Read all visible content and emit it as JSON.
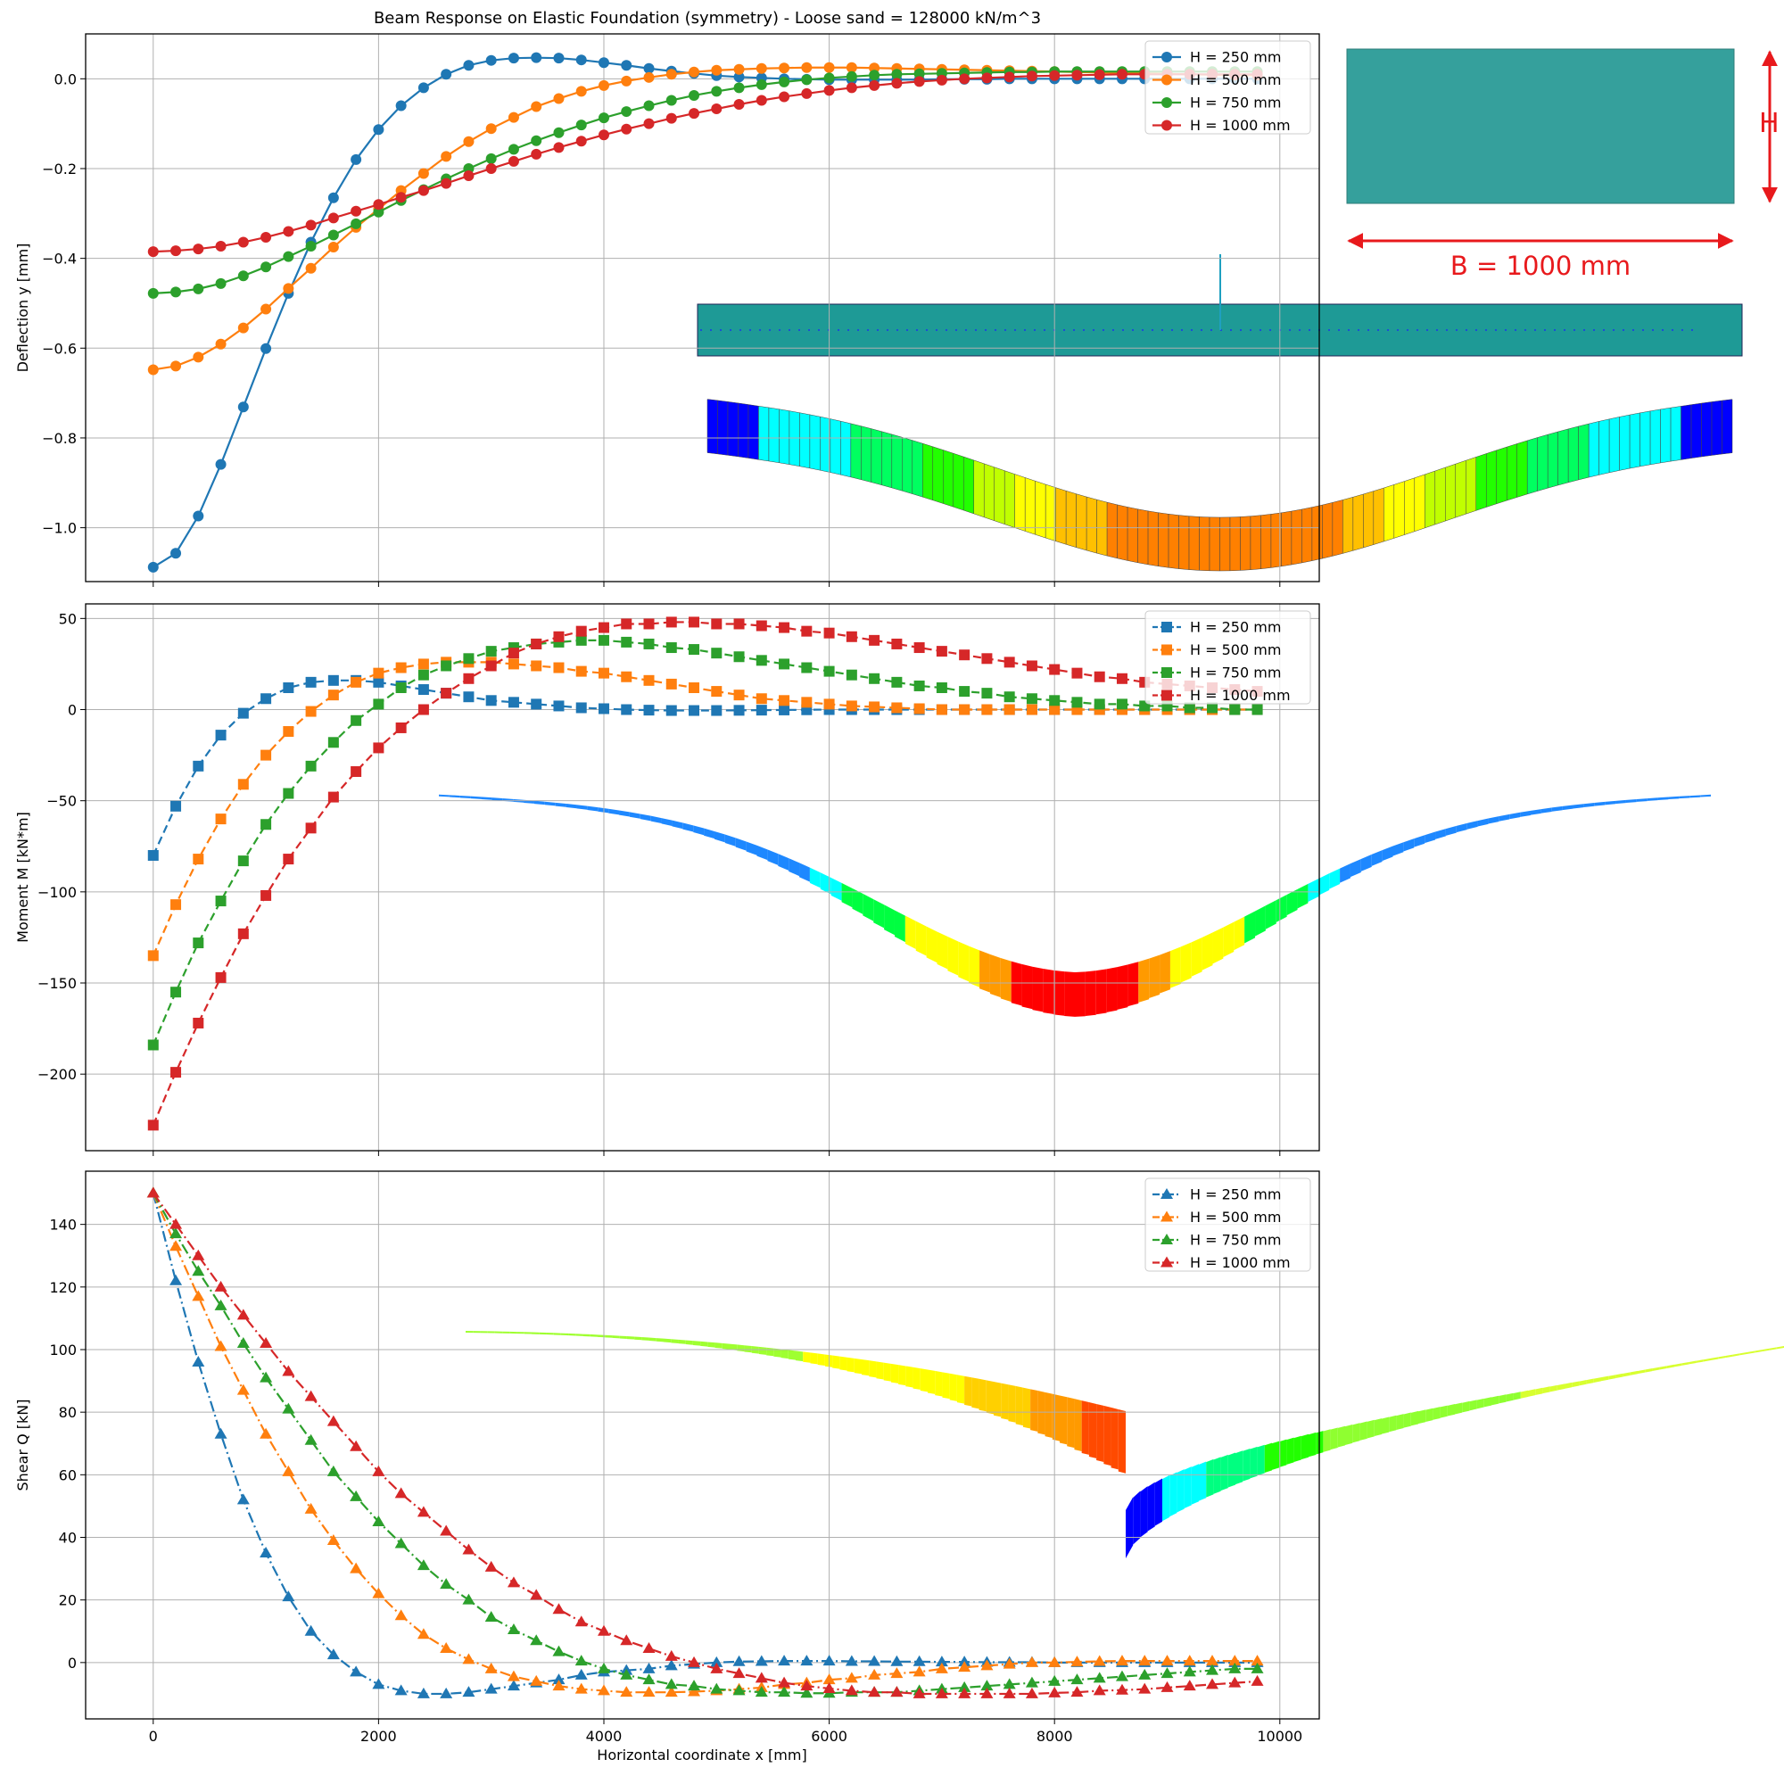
{
  "figure": {
    "title": "Beam Response on Elastic Foundation (symmetry) - Loose sand = 128000 kN/m^3",
    "xlabel": "Horizontal coordinate x [mm]"
  },
  "colors": {
    "H250": "#1f77b4",
    "H500": "#ff7f0e",
    "H750": "#2ca02c",
    "H1000": "#d62728",
    "teal": "#35a09c",
    "arrow_red": "#e8191c"
  },
  "section_diagram": {
    "height_label": "H",
    "width_label": "B = 1000 mm"
  },
  "chart_data": [
    {
      "type": "line",
      "name": "deflection",
      "ylabel": "Deflection y [mm]",
      "xlim": [
        -600,
        10350
      ],
      "ylim": [
        -1.12,
        0.1
      ],
      "xticks": [
        0,
        2000,
        4000,
        6000,
        8000,
        10000
      ],
      "yticks": [
        -1.0,
        -0.8,
        -0.6,
        -0.4,
        -0.2,
        0.0
      ],
      "ytick_labels": [
        "−1.0",
        "−0.8",
        "−0.6",
        "−0.4",
        "−0.2",
        "0.0"
      ],
      "grid": true,
      "legend_position": "top-right",
      "marker": "circle",
      "linestyle": "solid",
      "x": [
        0,
        200,
        400,
        600,
        800,
        1000,
        1200,
        1400,
        1600,
        1800,
        2000,
        2200,
        2400,
        2600,
        2800,
        3000,
        3200,
        3400,
        3600,
        3800,
        4000,
        4200,
        4400,
        4600,
        4800,
        5000,
        5200,
        5400,
        5600,
        5800,
        6000,
        6200,
        6400,
        6600,
        6800,
        7000,
        7200,
        7400,
        7600,
        7800,
        8000,
        8200,
        8400,
        8600,
        8800,
        9000,
        9200,
        9400,
        9600,
        9800
      ],
      "series": [
        {
          "name": "H = 250 mm",
          "values": [
            -1.088,
            -1.057,
            -0.974,
            -0.859,
            -0.731,
            -0.601,
            -0.478,
            -0.364,
            -0.265,
            -0.18,
            -0.113,
            -0.06,
            -0.02,
            0.01,
            0.03,
            0.041,
            0.046,
            0.047,
            0.046,
            0.042,
            0.036,
            0.03,
            0.023,
            0.017,
            0.012,
            0.007,
            0.004,
            0.002,
            0.0,
            -0.001,
            -0.002,
            -0.002,
            -0.002,
            -0.002,
            -0.002,
            -0.001,
            -0.001,
            -0.001,
            0.0,
            0.0,
            0.0,
            0.0,
            0.0,
            0.0,
            0.0,
            0.0,
            0.0,
            0.0,
            0.0,
            0.0
          ]
        },
        {
          "name": "H = 500 mm",
          "values": [
            -0.648,
            -0.64,
            -0.62,
            -0.591,
            -0.555,
            -0.513,
            -0.467,
            -0.422,
            -0.375,
            -0.331,
            -0.29,
            -0.249,
            -0.211,
            -0.173,
            -0.14,
            -0.111,
            -0.086,
            -0.062,
            -0.044,
            -0.028,
            -0.015,
            -0.005,
            0.003,
            0.01,
            0.015,
            0.019,
            0.021,
            0.023,
            0.024,
            0.025,
            0.025,
            0.025,
            0.024,
            0.023,
            0.022,
            0.021,
            0.02,
            0.019,
            0.018,
            0.017,
            0.016,
            0.015,
            0.014,
            0.013,
            0.012,
            0.011,
            0.01,
            0.009,
            0.008,
            0.008
          ]
        },
        {
          "name": "H = 750 mm",
          "values": [
            -0.478,
            -0.475,
            -0.468,
            -0.456,
            -0.439,
            -0.419,
            -0.396,
            -0.373,
            -0.348,
            -0.323,
            -0.297,
            -0.271,
            -0.247,
            -0.223,
            -0.2,
            -0.178,
            -0.157,
            -0.138,
            -0.12,
            -0.103,
            -0.087,
            -0.073,
            -0.06,
            -0.048,
            -0.037,
            -0.028,
            -0.02,
            -0.013,
            -0.007,
            -0.002,
            0.002,
            0.005,
            0.008,
            0.01,
            0.011,
            0.012,
            0.013,
            0.014,
            0.015,
            0.015,
            0.016,
            0.016,
            0.016,
            0.016,
            0.016,
            0.016,
            0.016,
            0.016,
            0.016,
            0.016
          ]
        },
        {
          "name": "H = 1000 mm",
          "values": [
            -0.385,
            -0.383,
            -0.379,
            -0.373,
            -0.364,
            -0.353,
            -0.34,
            -0.326,
            -0.31,
            -0.295,
            -0.28,
            -0.264,
            -0.249,
            -0.233,
            -0.216,
            -0.2,
            -0.184,
            -0.168,
            -0.153,
            -0.139,
            -0.125,
            -0.112,
            -0.1,
            -0.088,
            -0.077,
            -0.067,
            -0.057,
            -0.048,
            -0.04,
            -0.033,
            -0.026,
            -0.02,
            -0.015,
            -0.01,
            -0.006,
            -0.003,
            0.0,
            0.002,
            0.004,
            0.006,
            0.007,
            0.008,
            0.009,
            0.01,
            0.01,
            0.01,
            0.01,
            0.01,
            0.01,
            0.01
          ]
        }
      ]
    },
    {
      "type": "line",
      "name": "moment",
      "ylabel": "Moment M [kN*m]",
      "xlim": [
        -600,
        10350
      ],
      "ylim": [
        -242,
        58
      ],
      "xticks": [
        0,
        2000,
        4000,
        6000,
        8000,
        10000
      ],
      "yticks": [
        -200,
        -150,
        -100,
        -50,
        0,
        50
      ],
      "ytick_labels": [
        "−200",
        "−150",
        "−100",
        "−50",
        "0",
        "50"
      ],
      "grid": true,
      "legend_position": "top-right",
      "marker": "square",
      "linestyle": "dashed",
      "x": [
        0,
        200,
        400,
        600,
        800,
        1000,
        1200,
        1400,
        1600,
        1800,
        2000,
        2200,
        2400,
        2600,
        2800,
        3000,
        3200,
        3400,
        3600,
        3800,
        4000,
        4200,
        4400,
        4600,
        4800,
        5000,
        5200,
        5400,
        5600,
        5800,
        6000,
        6200,
        6400,
        6600,
        6800,
        7000,
        7200,
        7400,
        7600,
        7800,
        8000,
        8200,
        8400,
        8600,
        8800,
        9000,
        9200,
        9400,
        9600,
        9800
      ],
      "series": [
        {
          "name": "H = 250 mm",
          "values": [
            -80,
            -53,
            -31,
            -14,
            -2,
            6,
            12,
            15,
            16,
            16,
            15,
            13,
            11,
            9,
            7,
            5,
            4,
            3,
            2,
            1,
            0.5,
            0,
            -0.3,
            -0.5,
            -0.5,
            -0.5,
            -0.4,
            -0.3,
            -0.2,
            -0.1,
            0,
            0,
            0,
            0,
            0,
            0,
            0,
            0,
            0,
            0,
            0,
            0,
            0,
            0,
            0,
            0,
            0,
            0,
            0,
            0
          ]
        },
        {
          "name": "H = 500 mm",
          "values": [
            -135,
            -107,
            -82,
            -60,
            -41,
            -25,
            -12,
            -1,
            8,
            15,
            20,
            23,
            25,
            26,
            26,
            26,
            25,
            24,
            23,
            21,
            20,
            18,
            16,
            14,
            12,
            10,
            8,
            6,
            5,
            4,
            3,
            2,
            1.5,
            1,
            0.5,
            0,
            0,
            0,
            0,
            0,
            0,
            0,
            0,
            0,
            0,
            0,
            0,
            0,
            0,
            0
          ]
        },
        {
          "name": "H = 750 mm",
          "values": [
            -184,
            -155,
            -128,
            -105,
            -83,
            -63,
            -46,
            -31,
            -18,
            -6,
            3,
            12,
            19,
            24,
            28,
            32,
            34,
            36,
            37,
            38,
            38,
            37,
            36,
            34,
            33,
            31,
            29,
            27,
            25,
            23,
            21,
            19,
            17,
            15,
            13,
            12,
            10,
            9,
            7,
            6,
            5,
            4,
            3,
            3,
            2,
            2,
            1,
            1,
            0,
            0
          ]
        },
        {
          "name": "H = 1000 mm",
          "values": [
            -228,
            -199,
            -172,
            -147,
            -123,
            -102,
            -82,
            -65,
            -48,
            -34,
            -21,
            -10,
            0,
            9,
            17,
            24,
            31,
            36,
            40,
            43,
            45,
            47,
            47,
            48,
            48,
            47,
            47,
            46,
            45,
            43,
            42,
            40,
            38,
            36,
            34,
            32,
            30,
            28,
            26,
            24,
            22,
            20,
            18,
            17,
            15,
            14,
            13,
            12,
            11,
            10
          ]
        }
      ]
    },
    {
      "type": "line",
      "name": "shear",
      "ylabel": "Shear Q [kN]",
      "xlim": [
        -600,
        10350
      ],
      "ylim": [
        -18,
        157
      ],
      "xticks": [
        0,
        2000,
        4000,
        6000,
        8000,
        10000
      ],
      "xtick_labels": [
        "0",
        "2000",
        "4000",
        "6000",
        "8000",
        "10000"
      ],
      "yticks": [
        0,
        20,
        40,
        60,
        80,
        100,
        120,
        140
      ],
      "ytick_labels": [
        "0",
        "20",
        "40",
        "60",
        "80",
        "100",
        "120",
        "140"
      ],
      "grid": true,
      "legend_position": "top-right",
      "marker": "triangle",
      "linestyle": "dashdot",
      "x": [
        0,
        200,
        400,
        600,
        800,
        1000,
        1200,
        1400,
        1600,
        1800,
        2000,
        2200,
        2400,
        2600,
        2800,
        3000,
        3200,
        3400,
        3600,
        3800,
        4000,
        4200,
        4400,
        4600,
        4800,
        5000,
        5200,
        5400,
        5600,
        5800,
        6000,
        6200,
        6400,
        6600,
        6800,
        7000,
        7200,
        7400,
        7600,
        7800,
        8000,
        8200,
        8400,
        8600,
        8800,
        9000,
        9200,
        9400,
        9600,
        9800
      ],
      "series": [
        {
          "name": "H = 250 mm",
          "values": [
            150,
            122,
            96,
            73,
            52,
            35,
            21,
            10,
            2.5,
            -3,
            -7,
            -9,
            -10,
            -10,
            -9.5,
            -8.5,
            -7.5,
            -6.5,
            -5.5,
            -4,
            -3,
            -2.5,
            -2,
            -1,
            -0.5,
            0,
            0.3,
            0.4,
            0.5,
            0.5,
            0.5,
            0.4,
            0.4,
            0.3,
            0.3,
            0.2,
            0.2,
            0.1,
            0.1,
            0.1,
            0,
            0,
            0,
            0,
            0,
            0,
            0,
            0,
            0,
            0
          ]
        },
        {
          "name": "H = 500 mm",
          "values": [
            150,
            133,
            117,
            101,
            87,
            73,
            61,
            49,
            39,
            30,
            22,
            15,
            9,
            4.5,
            1,
            -2,
            -4.5,
            -6,
            -7.5,
            -8.5,
            -9,
            -9.5,
            -9.5,
            -9.5,
            -9.3,
            -9,
            -8.5,
            -8,
            -7,
            -6.5,
            -5.5,
            -5,
            -4,
            -3.5,
            -3,
            -2,
            -1.5,
            -1,
            -0.5,
            0,
            0,
            0.2,
            0.4,
            0.5,
            0.5,
            0.5,
            0.5,
            0.5,
            0.5,
            0.5
          ]
        },
        {
          "name": "H = 750 mm",
          "values": [
            150,
            137,
            125,
            114,
            102,
            91,
            81,
            71,
            61,
            53,
            45,
            38,
            31,
            25,
            20,
            14.5,
            10.5,
            7,
            3.5,
            0.5,
            -2,
            -4,
            -5.5,
            -7,
            -7.5,
            -8.5,
            -9,
            -9.5,
            -9.5,
            -9.8,
            -9.8,
            -9.5,
            -9.5,
            -9.5,
            -9,
            -8.5,
            -8,
            -7.5,
            -7,
            -6.5,
            -6,
            -5.5,
            -5,
            -4.5,
            -4,
            -3.5,
            -3,
            -2.5,
            -2,
            -2
          ]
        },
        {
          "name": "H = 1000 mm",
          "values": [
            150,
            140,
            130,
            120,
            111,
            102,
            93,
            85,
            77,
            69,
            61,
            54,
            48,
            42,
            36,
            30.5,
            25.5,
            21.5,
            17,
            13,
            10,
            7,
            4.5,
            2,
            0,
            -2,
            -3.5,
            -5,
            -6.5,
            -7.5,
            -8.3,
            -9,
            -9.5,
            -9.5,
            -10,
            -10,
            -10,
            -10,
            -10,
            -10,
            -9.7,
            -9.5,
            -9,
            -8.8,
            -8.5,
            -8,
            -7.5,
            -7,
            -6.5,
            -6
          ]
        }
      ]
    }
  ]
}
